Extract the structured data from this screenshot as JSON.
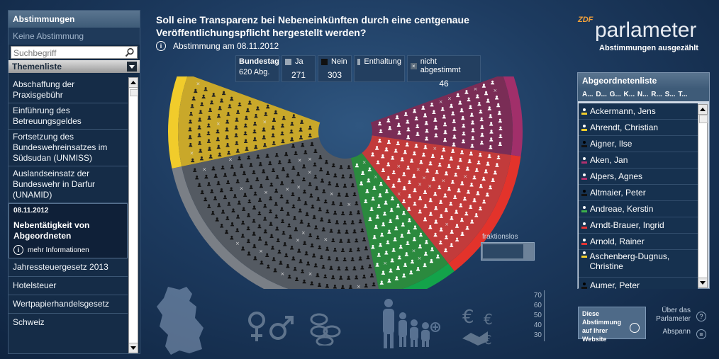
{
  "left_panel": {
    "title": "Abstimmungen",
    "none_label": "Keine Abstimmung",
    "search_placeholder": "Suchbegriff",
    "themes_label": "Themenliste",
    "topics": [
      "Abschaffung der Praxisgebühr",
      "Einführung des Betreuungsgeldes",
      "Fortsetzung des Bundeswehreinsatzes im Südsudan (UNMISS)",
      "Auslandseinsatz der Bundeswehr in Darfur (UNAMID)"
    ],
    "selected": {
      "date": "08.11.2012",
      "title": "Nebentätigkeit von Abgeordneten",
      "more": "mehr Informationen"
    },
    "topics_after": [
      "Jahressteuergesetz 2013",
      "Hotelsteuer",
      "Wertpapierhandelsgesetz",
      "Schweiz"
    ]
  },
  "header": {
    "question": "Soll eine Transparenz bei Nebeneinkünften durch eine centgenaue Veröffentlichungspflicht hergestellt werden?",
    "vote_date": "Abstimmung am 08.11.2012"
  },
  "logo": {
    "zdf": "ZDF",
    "name": "parlameter",
    "subtitle": "Abstimmungen ausgezählt"
  },
  "stats": {
    "house": "Bundestag",
    "total": "620 Abg.",
    "yes_label": "Ja",
    "yes": "271",
    "no_label": "Nein",
    "no": "303",
    "abstain_label": "Enthaltung",
    "abstain": "",
    "absent_label": "nicht abgestimmt",
    "absent": "46"
  },
  "chamber": {
    "party_colors": {
      "linke": "#7a2d56",
      "spd": "#c23b3b",
      "gruene": "#2b8a3e",
      "union": "#1c1c1c",
      "fdp": "#c9a82a"
    },
    "fraktionslos_label": "fraktionslos"
  },
  "right_panel": {
    "title": "Abgeordnetenliste",
    "alphabet": "A... D... G... K... N... R... S... T...",
    "members": [
      {
        "name": "Ackermann, Jens",
        "color": "#f1cc2b"
      },
      {
        "name": "Ahrendt, Christian",
        "color": "#f1cc2b"
      },
      {
        "name": "Aigner, Ilse",
        "color": "#111111"
      },
      {
        "name": "Aken, Jan",
        "color": "#b0306e"
      },
      {
        "name": "Alpers, Agnes",
        "color": "#b0306e"
      },
      {
        "name": "Altmaier, Peter",
        "color": "#111111"
      },
      {
        "name": "Andreae, Kerstin",
        "color": "#3cb04b"
      },
      {
        "name": "Arndt-Brauer, Ingrid",
        "color": "#e23333"
      },
      {
        "name": "Arnold, Rainer",
        "color": "#e23333"
      },
      {
        "name": "Aschenberg-Dugnus, Christine",
        "color": "#f1cc2b"
      },
      {
        "name": "Aumer, Peter",
        "color": "#111111"
      }
    ]
  },
  "bottom": {
    "share": "Diese Abstimmung auf Ihrer Website",
    "about": "Über das Parlameter",
    "credits": "Abspann",
    "axis_ticks": [
      "70",
      "60",
      "50",
      "40",
      "30"
    ]
  }
}
